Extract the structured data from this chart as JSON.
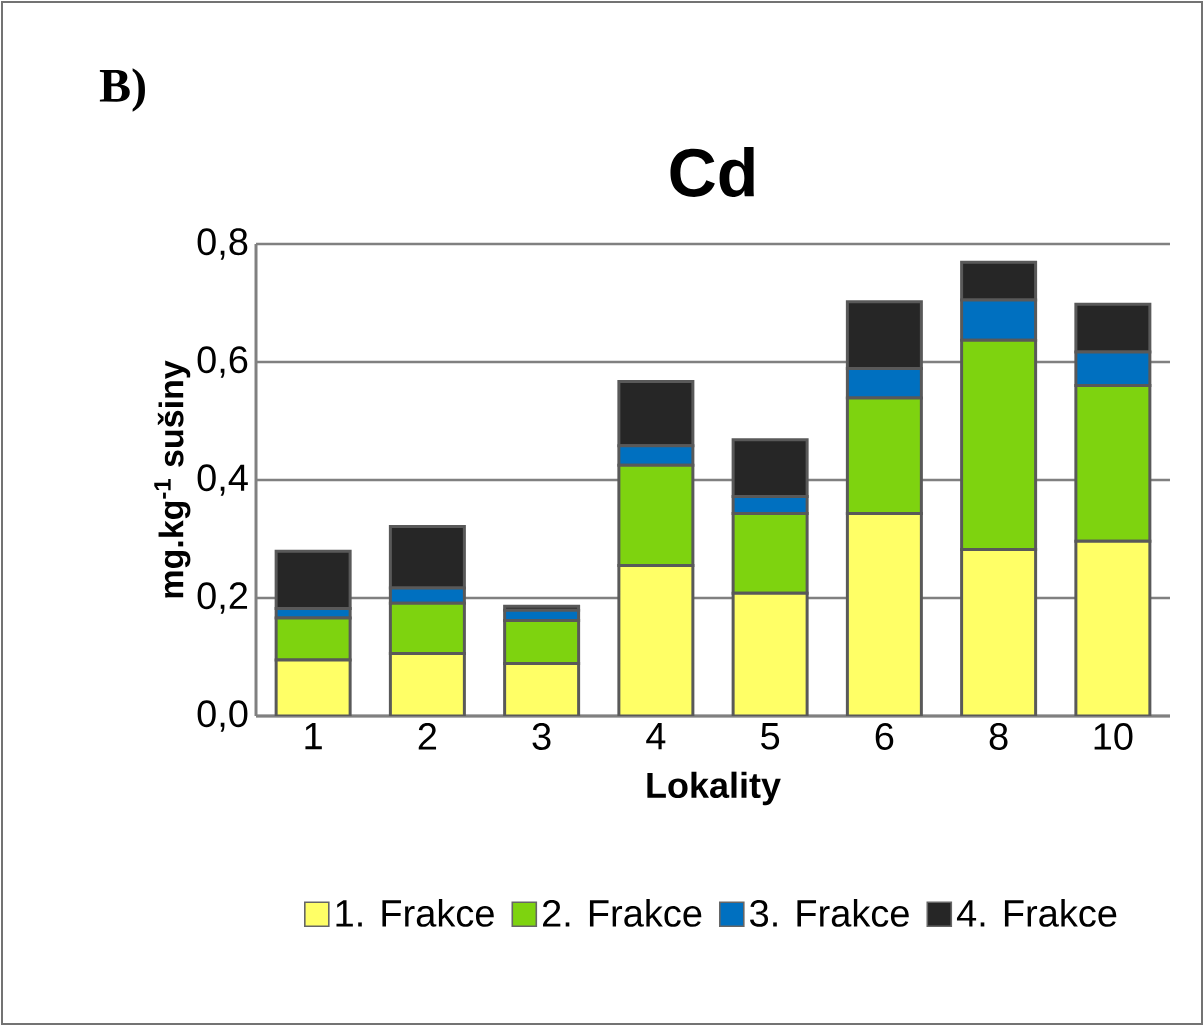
{
  "chart_data": {
    "type": "bar",
    "stacked": true,
    "title": "Cd",
    "xlabel": "Lokality",
    "ylabel": "mg.kg$^{-1}$ sušiny",
    "annotations": [
      "**B)**"
    ],
    "categories": [
      "1",
      "2",
      "3",
      "4",
      "5",
      "6",
      "8",
      "10"
    ],
    "series": [
      {
        "name": "1. Frakce",
        "color": "#ffff66",
        "values": [
          0.095,
          0.106,
          0.089,
          0.255,
          0.208,
          0.343,
          0.282,
          0.296
        ]
      },
      {
        "name": "2. Frakce",
        "color": "#7ed30f",
        "values": [
          0.071,
          0.085,
          0.073,
          0.17,
          0.135,
          0.196,
          0.355,
          0.264
        ]
      },
      {
        "name": "3. Frakce",
        "color": "#0070c0",
        "values": [
          0.016,
          0.026,
          0.017,
          0.033,
          0.029,
          0.05,
          0.068,
          0.057
        ]
      },
      {
        "name": "4. Frakce",
        "color": "#262626",
        "values": [
          0.097,
          0.104,
          0.007,
          0.109,
          0.096,
          0.113,
          0.064,
          0.081
        ]
      }
    ],
    "ylim": [
      0,
      0.8
    ],
    "yticks": [
      {
        "value": 0,
        "label": "0,0"
      },
      {
        "value": 0.2,
        "label": "0,2"
      },
      {
        "value": 0.4,
        "label": "0,4"
      },
      {
        "value": 0.6,
        "label": "0,6"
      },
      {
        "value": 0.8,
        "label": "0,8"
      }
    ],
    "grid": "y",
    "legend": "bottom"
  }
}
